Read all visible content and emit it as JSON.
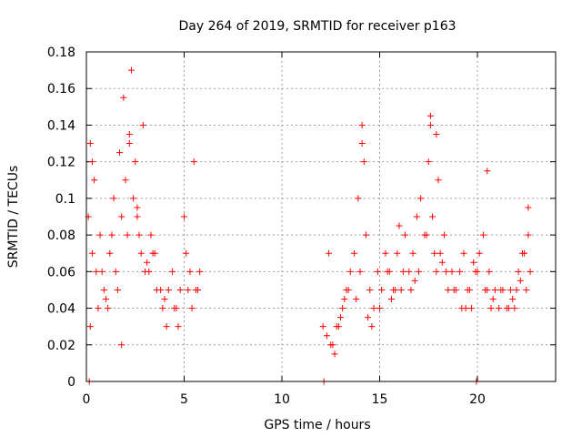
{
  "chart_data": {
    "type": "scatter",
    "title": "Day 264 of 2019, SRMTID for receiver p163",
    "xlabel": "GPS time / hours",
    "ylabel": "SRMTID / TECUs",
    "xlim": [
      0,
      24
    ],
    "ylim": [
      0,
      0.18
    ],
    "xticks": [
      0,
      5,
      10,
      15,
      20
    ],
    "xtick_labels": [
      "0",
      "5",
      "10",
      "15",
      "20"
    ],
    "yticks": [
      0,
      0.02,
      0.04,
      0.06,
      0.08,
      0.1,
      0.12,
      0.14,
      0.16,
      0.18
    ],
    "ytick_labels": [
      "0",
      "0.02",
      "0.04",
      "0.06",
      "0.08",
      "0.1",
      "0.12",
      "0.14",
      "0.16",
      "0.18"
    ],
    "grid": true,
    "marker": "+",
    "marker_color": "#ff0000",
    "series": [
      {
        "name": "SRMTID",
        "x": [
          0.1,
          0.2,
          0.3,
          0.5,
          0.7,
          0.9,
          1.2,
          1.5,
          1.8,
          2.0,
          2.2,
          2.4,
          2.6,
          2.8,
          3.0,
          3.3,
          3.6,
          3.9,
          4.2,
          4.5,
          4.8,
          5.1,
          5.4,
          5.7,
          0.3,
          0.8,
          1.1,
          1.6,
          2.1,
          2.3,
          2.5,
          2.7,
          3.2,
          3.8,
          4.1,
          4.4,
          5.0,
          5.3,
          5.6,
          0.6,
          1.4,
          1.9,
          2.9,
          3.5,
          4.7,
          5.5,
          1.0,
          1.7,
          2.6,
          4.0,
          5.2,
          0.4,
          1.3,
          2.2,
          3.4,
          4.6,
          5.8,
          0.2,
          1.8,
          3.1,
          12.1,
          12.3,
          12.5,
          12.7,
          12.9,
          13.1,
          13.3,
          13.5,
          13.7,
          13.9,
          14.1,
          14.3,
          14.5,
          14.7,
          14.9,
          15.1,
          15.3,
          15.5,
          15.7,
          15.9,
          16.1,
          16.3,
          16.5,
          16.7,
          16.9,
          17.1,
          17.3,
          17.5,
          17.7,
          17.9,
          18.1,
          18.3,
          18.5,
          18.7,
          18.9,
          19.1,
          19.3,
          19.5,
          19.7,
          19.9,
          20.1,
          20.3,
          20.5,
          20.7,
          20.9,
          21.1,
          21.3,
          21.5,
          21.7,
          21.9,
          22.1,
          22.3,
          22.5,
          22.7,
          12.6,
          12.8,
          13.0,
          13.4,
          13.8,
          14.0,
          14.2,
          14.6,
          15.0,
          15.4,
          15.8,
          16.2,
          16.6,
          17.0,
          17.4,
          17.6,
          17.8,
          18.0,
          18.4,
          18.8,
          19.2,
          19.6,
          20.0,
          20.4,
          20.8,
          21.2,
          21.6,
          22.0,
          22.4,
          22.6,
          14.1,
          17.6,
          17.9,
          20.5,
          22.6,
          13.2,
          14.4,
          15.6,
          16.8,
          18.2,
          19.4,
          20.6,
          21.8,
          12.4,
          16.0,
          19.8,
          22.2,
          0.15,
          12.15,
          19.95
        ],
        "y": [
          0.09,
          0.13,
          0.07,
          0.06,
          0.08,
          0.05,
          0.07,
          0.06,
          0.09,
          0.11,
          0.13,
          0.1,
          0.09,
          0.07,
          0.06,
          0.08,
          0.05,
          0.04,
          0.05,
          0.04,
          0.05,
          0.07,
          0.04,
          0.05,
          0.12,
          0.06,
          0.04,
          0.05,
          0.08,
          0.17,
          0.12,
          0.08,
          0.06,
          0.05,
          0.03,
          0.06,
          0.09,
          0.06,
          0.05,
          0.04,
          0.1,
          0.155,
          0.14,
          0.07,
          0.03,
          0.12,
          0.045,
          0.125,
          0.095,
          0.045,
          0.05,
          0.11,
          0.08,
          0.135,
          0.07,
          0.04,
          0.06,
          0.03,
          0.02,
          0.065,
          0.03,
          0.025,
          0.02,
          0.015,
          0.03,
          0.04,
          0.05,
          0.06,
          0.07,
          0.1,
          0.14,
          0.08,
          0.05,
          0.04,
          0.06,
          0.05,
          0.07,
          0.06,
          0.05,
          0.07,
          0.05,
          0.08,
          0.06,
          0.07,
          0.09,
          0.1,
          0.08,
          0.12,
          0.09,
          0.06,
          0.07,
          0.08,
          0.05,
          0.06,
          0.05,
          0.06,
          0.07,
          0.05,
          0.04,
          0.06,
          0.07,
          0.08,
          0.05,
          0.04,
          0.05,
          0.04,
          0.05,
          0.04,
          0.05,
          0.04,
          0.06,
          0.07,
          0.05,
          0.06,
          0.02,
          0.03,
          0.035,
          0.05,
          0.045,
          0.06,
          0.12,
          0.03,
          0.04,
          0.06,
          0.05,
          0.06,
          0.05,
          0.06,
          0.08,
          0.14,
          0.07,
          0.11,
          0.06,
          0.05,
          0.04,
          0.05,
          0.06,
          0.05,
          0.045,
          0.05,
          0.04,
          0.05,
          0.07,
          0.08,
          0.13,
          0.145,
          0.135,
          0.115,
          0.095,
          0.045,
          0.035,
          0.045,
          0.055,
          0.065,
          0.04,
          0.06,
          0.045,
          0.07,
          0.085,
          0.065,
          0.055,
          0.0,
          0.0,
          0.0
        ]
      }
    ]
  }
}
